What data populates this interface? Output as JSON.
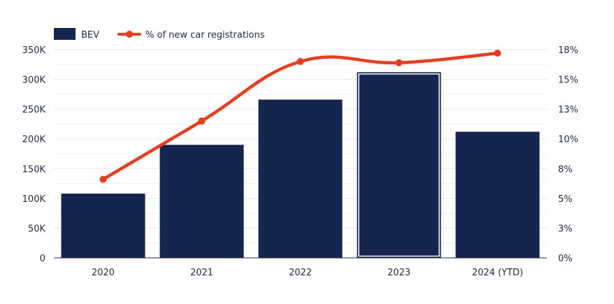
{
  "chart_data": {
    "type": "bar",
    "categories": [
      "2020",
      "2021",
      "2022",
      "2023",
      "2024 (YTD)"
    ],
    "series": [
      {
        "name": "BEV",
        "type": "bar",
        "axis": "left",
        "values": [
          108000,
          190000,
          266000,
          312000,
          212000
        ]
      },
      {
        "name": "% of new car registrations",
        "type": "line",
        "axis": "right",
        "values": [
          6.6,
          11.5,
          16.5,
          16.4,
          17.2
        ]
      }
    ],
    "y_left": {
      "ticks": [
        0,
        50000,
        100000,
        150000,
        200000,
        250000,
        300000,
        350000
      ],
      "tick_labels": [
        "0",
        "50K",
        "100K",
        "150K",
        "200K",
        "250K",
        "300K",
        "350K"
      ],
      "ylim": [
        0,
        350000
      ]
    },
    "y_right": {
      "tick_labels": [
        "0%",
        "3%",
        "5%",
        "8%",
        "10%",
        "13%",
        "15%",
        "18%"
      ],
      "ylim": [
        0,
        17.5
      ]
    },
    "highlighted_category": "2023",
    "legend": {
      "placement": "top-left"
    },
    "grid": true,
    "colors": {
      "bar": "#14254f",
      "line": "#f03a17",
      "grid": "#e5e7eb",
      "axis": "#1f2a44"
    }
  }
}
